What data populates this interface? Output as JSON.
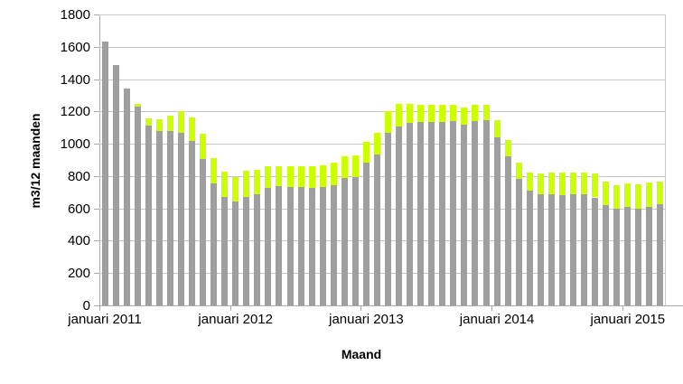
{
  "chart_data": {
    "type": "bar",
    "stacked": true,
    "title": "",
    "xlabel": "Maand",
    "ylabel": "m3/12 maanden",
    "ylim": [
      0,
      1800
    ],
    "y_ticks": [
      0,
      200,
      400,
      600,
      800,
      1000,
      1200,
      1400,
      1600,
      1800
    ],
    "grid": true,
    "legend": "none",
    "x_axis_tick_labels": [
      "januari 2011",
      "januari 2012",
      "januari 2013",
      "januari 2014",
      "januari 2015"
    ],
    "x_axis_tick_category_index": [
      0,
      12,
      24,
      36,
      48
    ],
    "categories": [
      "januari 2011",
      "februari 2011",
      "maart 2011",
      "april 2011",
      "mei 2011",
      "juni 2011",
      "juli 2011",
      "augustus 2011",
      "september 2011",
      "oktober 2011",
      "november 2011",
      "december 2011",
      "januari 2012",
      "februari 2012",
      "maart 2012",
      "april 2012",
      "mei 2012",
      "juni 2012",
      "juli 2012",
      "augustus 2012",
      "september 2012",
      "oktober 2012",
      "november 2012",
      "december 2012",
      "januari 2013",
      "februari 2013",
      "maart 2013",
      "april 2013",
      "mei 2013",
      "juni 2013",
      "juli 2013",
      "augustus 2013",
      "september 2013",
      "oktober 2013",
      "november 2013",
      "december 2013",
      "januari 2014",
      "februari 2014",
      "maart 2014",
      "april 2014",
      "mei 2014",
      "juni 2014",
      "juli 2014",
      "augustus 2014",
      "september 2014",
      "oktober 2014",
      "november 2014",
      "december 2014",
      "januari 2015",
      "februari 2015",
      "maart 2015",
      "april 2015"
    ],
    "series": [
      {
        "name": "gray-bottom-segment",
        "color": "#9f9f9f",
        "values": [
          1630,
          1485,
          1340,
          1230,
          1110,
          1080,
          1080,
          1070,
          1015,
          905,
          757,
          673,
          643,
          672,
          687,
          729,
          738,
          734,
          734,
          729,
          732,
          745,
          789,
          792,
          882,
          933,
          1069,
          1105,
          1131,
          1134,
          1134,
          1134,
          1140,
          1120,
          1138,
          1144,
          1040,
          923,
          780,
          708,
          686,
          685,
          680,
          690,
          685,
          668,
          623,
          600,
          608,
          600,
          610,
          627
        ]
      },
      {
        "name": "green-top-segment",
        "color": "#ccff00",
        "values": [
          0,
          0,
          0,
          15,
          45,
          70,
          95,
          130,
          150,
          155,
          153,
          152,
          152,
          161,
          150,
          131,
          122,
          126,
          126,
          131,
          133,
          140,
          131,
          138,
          128,
          132,
          131,
          140,
          114,
          106,
          106,
          106,
          103,
          105,
          105,
          99,
          105,
          102,
          105,
          112,
          132,
          135,
          140,
          130,
          135,
          149,
          143,
          144,
          145,
          149,
          150,
          141
        ]
      }
    ]
  },
  "colors": {
    "background": "#ffffff",
    "gridline": "#c6c6c6",
    "axis": "#a9a9a9",
    "text": "#000000",
    "bar_gray": "#9f9f9f",
    "bar_green": "#ccff00"
  }
}
